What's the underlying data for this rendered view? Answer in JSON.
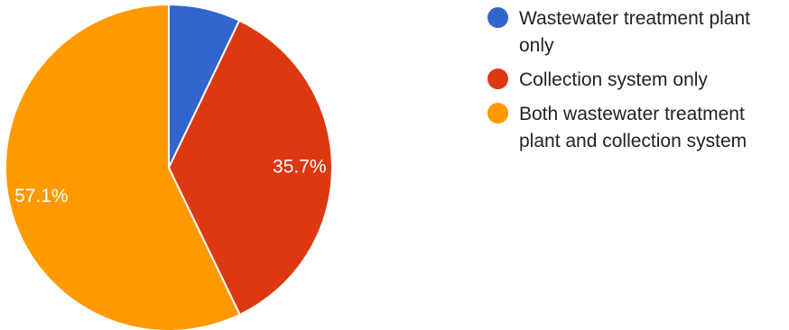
{
  "chart_data": {
    "type": "pie",
    "categories": [
      "Wastewater treatment plant only",
      "Collection system only",
      "Both wastewater treatment plant and collection system"
    ],
    "values": [
      7.1,
      35.7,
      57.1
    ],
    "value_labels": [
      "",
      "35.7%",
      "57.1%"
    ],
    "colors": [
      "#3366cc",
      "#dc3912",
      "#ff9900"
    ],
    "start_angle_deg": 90,
    "direction": "clockwise",
    "legend_position": "right"
  },
  "legend": {
    "items": [
      {
        "label": "Wastewater treatment plant only",
        "color": "#3366cc"
      },
      {
        "label": "Collection system only",
        "color": "#dc3912"
      },
      {
        "label": "Both wastewater treatment plant and collection system",
        "color": "#ff9900"
      }
    ]
  }
}
